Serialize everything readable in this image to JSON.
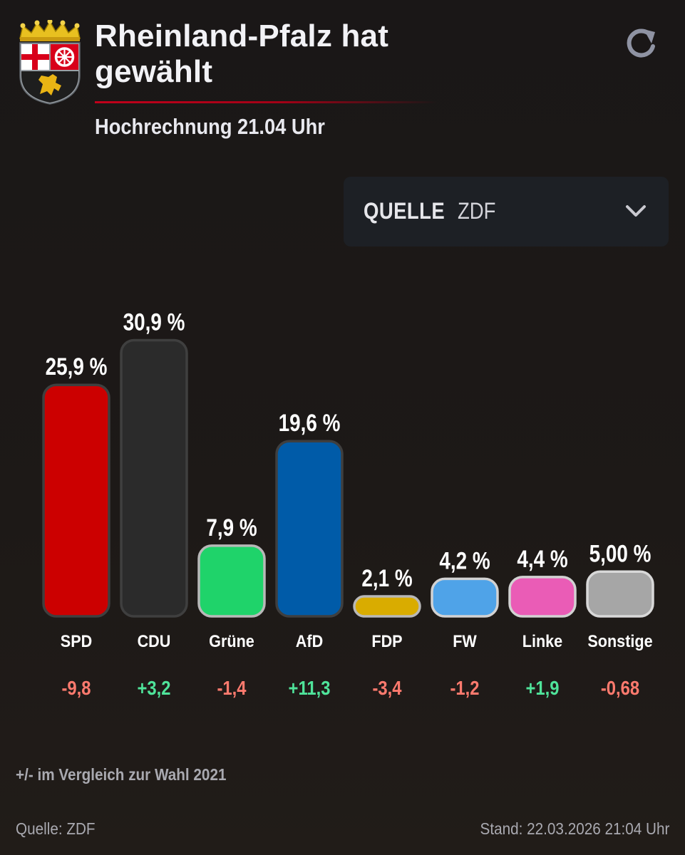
{
  "header": {
    "title_line1": "Rheinland-Pfalz hat",
    "title_line2": "gewählt",
    "subtitle": "Hochrechnung 21.04 Uhr",
    "refresh_icon": "refresh-icon",
    "crest_icon": "rheinland-pfalz-coat-of-arms-icon"
  },
  "source_select": {
    "label": "QUELLE",
    "value": "ZDF",
    "icon": "chevron-down-icon"
  },
  "chart_data": {
    "type": "bar",
    "title": "Rheinland-Pfalz hat gewählt",
    "subtitle": "Hochrechnung 21.04 Uhr",
    "categories": [
      "SPD",
      "CDU",
      "Grüne",
      "AfD",
      "FDP",
      "FW",
      "Linke",
      "Sonstige"
    ],
    "values": [
      25.9,
      30.9,
      7.9,
      19.6,
      2.1,
      4.2,
      4.4,
      5.0
    ],
    "value_labels": [
      "25,9 %",
      "30,9 %",
      "7,9 %",
      "19,6 %",
      "2,1 %",
      "4,2 %",
      "4,4 %",
      "5,00 %"
    ],
    "changes": [
      -9.8,
      3.2,
      -1.4,
      11.3,
      -3.4,
      -1.2,
      1.9,
      -0.68
    ],
    "change_labels": [
      "-9,8",
      "+3,2",
      "-1,4",
      "+11,3",
      "-3,4",
      "-1,2",
      "+1,9",
      "-0,68"
    ],
    "colors": [
      "#cc0000",
      "#2b2b2b",
      "#1fd36a",
      "#005ba8",
      "#d9ac00",
      "#4fa3e8",
      "#ea5cb6",
      "#a6a6a6"
    ],
    "outline_colors": [
      "#3f3f3f",
      "#3f3f3f",
      "#b8b8b8",
      "#3f3f3f",
      "#b8b8b8",
      "#d2d2d2",
      "#d2d2d2",
      "#d8d8d8"
    ],
    "positive_color": "#4fe39a",
    "negative_color": "#ff7a6e",
    "ylim": [
      0,
      31.5
    ],
    "xlabel": "",
    "ylabel": "",
    "grid": false
  },
  "footnote": "+/- im Vergleich zur Wahl 2021",
  "footer": {
    "source": "Quelle: ZDF",
    "timestamp": "Stand: 22.03.2026 21:04 Uhr"
  }
}
